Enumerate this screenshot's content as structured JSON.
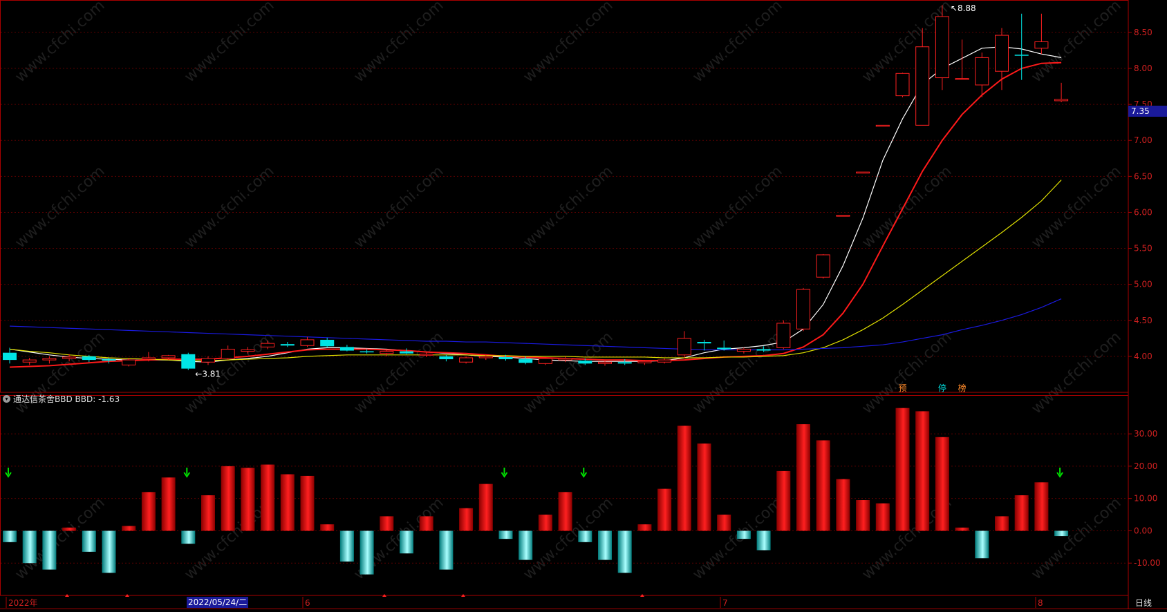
{
  "colors": {
    "up": "#ff2020",
    "down": "#00e5e5",
    "frame": "#aa0000",
    "grid": "#5a0000",
    "axis_text": "#d02020",
    "ma_white": "#ffffff",
    "ma_red": "#ff1a1a",
    "ma_yellow": "#e0e000",
    "ma_blue": "#1a1ae0",
    "signal_arrow": "#00e000",
    "marker_orange": "#ff8a2a",
    "marker_cyan": "#00e5e5"
  },
  "current_price_tag": "7.35",
  "price_axis": {
    "labels": [
      "8.50",
      "8.00",
      "7.50",
      "7.00",
      "6.50",
      "6.00",
      "5.50",
      "5.00",
      "4.50",
      "4.00"
    ]
  },
  "annotations": {
    "high_label": "8.88",
    "low_label": "3.81"
  },
  "event_markers": [
    "预",
    "停",
    "榜"
  ],
  "indicator": {
    "title": "通达信茶舍BBD  BBD: -1.63",
    "axis_labels": [
      "30.00",
      "20.00",
      "10.00",
      "0.00",
      "-10.00"
    ]
  },
  "time_axis": {
    "labels": [
      "2022年",
      "6",
      "7",
      "8"
    ],
    "cursor_date": "2022/05/24/二"
  },
  "period_label": "日线",
  "watermark_text": "www.cfchi.com",
  "chart_data": [
    {
      "type": "candlestick",
      "title": "",
      "ylim": [
        3.5,
        8.95
      ],
      "y_ticks": [
        4.0,
        4.5,
        5.0,
        5.5,
        6.0,
        6.5,
        7.0,
        7.5,
        8.0,
        8.5
      ],
      "candles": [
        {
          "o": 3.95,
          "h": 4.12,
          "l": 3.9,
          "c": 4.05,
          "color": "down"
        },
        {
          "o": 3.92,
          "h": 3.98,
          "l": 3.88,
          "c": 3.95,
          "color": "up"
        },
        {
          "o": 3.95,
          "h": 4.0,
          "l": 3.9,
          "c": 3.97,
          "color": "up"
        },
        {
          "o": 3.97,
          "h": 4.03,
          "l": 3.93,
          "c": 3.99,
          "color": "up"
        },
        {
          "o": 4.0,
          "h": 4.02,
          "l": 3.92,
          "c": 3.95,
          "color": "down"
        },
        {
          "o": 3.94,
          "h": 3.98,
          "l": 3.9,
          "c": 3.96,
          "color": "down"
        },
        {
          "o": 3.88,
          "h": 3.98,
          "l": 3.86,
          "c": 3.95,
          "color": "up"
        },
        {
          "o": 3.96,
          "h": 4.06,
          "l": 3.93,
          "c": 3.98,
          "color": "up"
        },
        {
          "o": 3.98,
          "h": 4.02,
          "l": 3.95,
          "c": 4.01,
          "color": "up"
        },
        {
          "o": 4.03,
          "h": 4.05,
          "l": 3.81,
          "c": 3.83,
          "color": "down"
        },
        {
          "o": 3.92,
          "h": 4.0,
          "l": 3.88,
          "c": 3.97,
          "color": "up"
        },
        {
          "o": 3.97,
          "h": 4.15,
          "l": 3.95,
          "c": 4.1,
          "color": "up"
        },
        {
          "o": 4.09,
          "h": 4.13,
          "l": 4.04,
          "c": 4.07,
          "color": "up"
        },
        {
          "o": 4.13,
          "h": 4.22,
          "l": 4.1,
          "c": 4.18,
          "color": "up"
        },
        {
          "o": 4.17,
          "h": 4.2,
          "l": 4.13,
          "c": 4.15,
          "color": "down"
        },
        {
          "o": 4.15,
          "h": 4.27,
          "l": 4.13,
          "c": 4.23,
          "color": "up"
        },
        {
          "o": 4.23,
          "h": 4.26,
          "l": 4.12,
          "c": 4.14,
          "color": "down"
        },
        {
          "o": 4.13,
          "h": 4.16,
          "l": 4.07,
          "c": 4.08,
          "color": "down"
        },
        {
          "o": 4.07,
          "h": 4.1,
          "l": 4.04,
          "c": 4.06,
          "color": "down"
        },
        {
          "o": 4.04,
          "h": 4.1,
          "l": 4.0,
          "c": 4.07,
          "color": "up"
        },
        {
          "o": 4.07,
          "h": 4.11,
          "l": 4.03,
          "c": 4.04,
          "color": "down"
        },
        {
          "o": 4.02,
          "h": 4.06,
          "l": 3.99,
          "c": 4.03,
          "color": "up"
        },
        {
          "o": 4.0,
          "h": 4.02,
          "l": 3.93,
          "c": 3.96,
          "color": "down"
        },
        {
          "o": 3.92,
          "h": 4.0,
          "l": 3.9,
          "c": 3.98,
          "color": "up"
        },
        {
          "o": 3.98,
          "h": 4.02,
          "l": 3.95,
          "c": 4.0,
          "color": "up"
        },
        {
          "o": 3.99,
          "h": 4.02,
          "l": 3.94,
          "c": 3.96,
          "color": "down"
        },
        {
          "o": 3.96,
          "h": 4.0,
          "l": 3.89,
          "c": 3.91,
          "color": "down"
        },
        {
          "o": 3.9,
          "h": 3.99,
          "l": 3.88,
          "c": 3.97,
          "color": "up"
        },
        {
          "o": 3.97,
          "h": 4.0,
          "l": 3.92,
          "c": 3.95,
          "color": "up"
        },
        {
          "o": 3.94,
          "h": 3.97,
          "l": 3.88,
          "c": 3.9,
          "color": "down"
        },
        {
          "o": 3.9,
          "h": 3.95,
          "l": 3.87,
          "c": 3.92,
          "color": "up"
        },
        {
          "o": 3.92,
          "h": 3.96,
          "l": 3.88,
          "c": 3.9,
          "color": "down"
        },
        {
          "o": 3.91,
          "h": 3.95,
          "l": 3.88,
          "c": 3.93,
          "color": "up"
        },
        {
          "o": 3.92,
          "h": 3.97,
          "l": 3.9,
          "c": 3.95,
          "color": "up"
        },
        {
          "o": 4.02,
          "h": 4.35,
          "l": 3.97,
          "c": 4.25,
          "color": "up"
        },
        {
          "o": 4.18,
          "h": 4.23,
          "l": 4.08,
          "c": 4.2,
          "color": "down"
        },
        {
          "o": 4.12,
          "h": 4.22,
          "l": 4.08,
          "c": 4.1,
          "color": "down"
        },
        {
          "o": 4.07,
          "h": 4.12,
          "l": 4.04,
          "c": 4.1,
          "color": "up"
        },
        {
          "o": 4.1,
          "h": 4.14,
          "l": 4.06,
          "c": 4.08,
          "color": "down"
        },
        {
          "o": 4.12,
          "h": 4.5,
          "l": 4.1,
          "c": 4.46,
          "color": "up"
        },
        {
          "o": 4.38,
          "h": 4.95,
          "l": 4.35,
          "c": 4.93,
          "color": "up"
        },
        {
          "o": 5.1,
          "h": 5.42,
          "l": 5.08,
          "c": 5.41,
          "color": "up"
        },
        {
          "o": 5.96,
          "h": 5.96,
          "l": 5.96,
          "c": 5.96,
          "color": "up"
        },
        {
          "o": 6.56,
          "h": 6.56,
          "l": 6.56,
          "c": 6.56,
          "color": "up"
        },
        {
          "o": 7.21,
          "h": 7.21,
          "l": 7.21,
          "c": 7.21,
          "color": "up"
        },
        {
          "o": 7.62,
          "h": 7.94,
          "l": 7.6,
          "c": 7.93,
          "color": "up"
        },
        {
          "o": 7.21,
          "h": 8.56,
          "l": 7.21,
          "c": 8.3,
          "color": "up"
        },
        {
          "o": 7.87,
          "h": 8.88,
          "l": 7.7,
          "c": 8.72,
          "color": "up"
        },
        {
          "o": 7.86,
          "h": 8.4,
          "l": 7.86,
          "c": 7.86,
          "color": "up"
        },
        {
          "o": 7.77,
          "h": 8.22,
          "l": 7.6,
          "c": 8.15,
          "color": "up"
        },
        {
          "o": 7.96,
          "h": 8.56,
          "l": 7.7,
          "c": 8.46,
          "color": "up"
        },
        {
          "o": 8.19,
          "h": 8.76,
          "l": 7.84,
          "c": 8.19,
          "color": "down"
        },
        {
          "o": 8.28,
          "h": 8.76,
          "l": 8.2,
          "c": 8.37,
          "color": "up"
        },
        {
          "o": 7.55,
          "h": 7.8,
          "l": 7.53,
          "c": 7.57,
          "color": "up"
        }
      ],
      "moving_averages": [
        {
          "color": "ma_white",
          "values": [
            4.1,
            4.06,
            4.02,
            3.99,
            3.97,
            3.96,
            3.95,
            3.95,
            3.95,
            3.93,
            3.92,
            3.95,
            3.97,
            4.0,
            4.05,
            4.1,
            4.12,
            4.12,
            4.11,
            4.1,
            4.08,
            4.06,
            4.04,
            4.02,
            4.0,
            3.99,
            3.97,
            3.95,
            3.94,
            3.93,
            3.93,
            3.93,
            3.93,
            3.94,
            3.98,
            4.05,
            4.1,
            4.12,
            4.15,
            4.2,
            4.38,
            4.72,
            5.26,
            5.92,
            6.72,
            7.3,
            7.78,
            8.0,
            8.14,
            8.28,
            8.3,
            8.27,
            8.2,
            8.15
          ]
        },
        {
          "color": "ma_red",
          "values": [
            3.85,
            3.86,
            3.87,
            3.89,
            3.91,
            3.93,
            3.94,
            3.95,
            3.96,
            3.96,
            3.96,
            3.98,
            4.0,
            4.03,
            4.06,
            4.09,
            4.1,
            4.1,
            4.1,
            4.09,
            4.08,
            4.06,
            4.05,
            4.04,
            4.02,
            4.0,
            3.99,
            3.98,
            3.97,
            3.96,
            3.95,
            3.95,
            3.94,
            3.94,
            3.95,
            3.97,
            3.99,
            4.0,
            4.01,
            4.04,
            4.13,
            4.3,
            4.6,
            5.0,
            5.53,
            6.05,
            6.57,
            7.0,
            7.36,
            7.63,
            7.85,
            8.0,
            8.07,
            8.08
          ]
        },
        {
          "color": "ma_yellow",
          "values": [
            4.1,
            4.07,
            4.05,
            4.02,
            4.0,
            3.98,
            3.97,
            3.96,
            3.95,
            3.94,
            3.94,
            3.95,
            3.96,
            3.97,
            3.98,
            4.0,
            4.01,
            4.02,
            4.02,
            4.02,
            4.02,
            4.02,
            4.02,
            4.02,
            4.01,
            4.01,
            4.0,
            4.0,
            4.0,
            3.99,
            3.99,
            3.99,
            3.99,
            3.98,
            3.98,
            3.98,
            3.99,
            3.99,
            4.0,
            4.01,
            4.05,
            4.12,
            4.23,
            4.37,
            4.53,
            4.72,
            4.92,
            5.12,
            5.32,
            5.52,
            5.72,
            5.93,
            6.16,
            6.45
          ]
        },
        {
          "color": "ma_blue",
          "values": [
            4.42,
            4.41,
            4.4,
            4.39,
            4.38,
            4.37,
            4.36,
            4.35,
            4.34,
            4.33,
            4.32,
            4.31,
            4.3,
            4.29,
            4.28,
            4.27,
            4.26,
            4.25,
            4.24,
            4.23,
            4.22,
            4.21,
            4.21,
            4.2,
            4.2,
            4.19,
            4.18,
            4.17,
            4.16,
            4.15,
            4.14,
            4.13,
            4.12,
            4.11,
            4.1,
            4.09,
            4.09,
            4.09,
            4.09,
            4.09,
            4.1,
            4.11,
            4.12,
            4.14,
            4.16,
            4.2,
            4.25,
            4.3,
            4.37,
            4.43,
            4.5,
            4.58,
            4.68,
            4.8
          ]
        }
      ]
    },
    {
      "type": "bar",
      "title": "通达信茶舍BBD  BBD: -1.63",
      "series_name": "BBD",
      "ylim": [
        -20,
        42
      ],
      "y_ticks": [
        30,
        20,
        10,
        0,
        -10
      ],
      "values": [
        -3.5,
        -10,
        -12,
        1,
        -6.5,
        -13,
        1.5,
        12,
        16.5,
        -4,
        11,
        20,
        19.5,
        20.5,
        17.5,
        17,
        2,
        -9.5,
        -13.5,
        4.5,
        -7,
        4.5,
        -12,
        7,
        14.5,
        -2.5,
        -9,
        5,
        12,
        -3.5,
        -9,
        -13,
        2,
        13,
        32.5,
        27,
        5,
        -2.5,
        -6,
        18.5,
        33,
        28,
        16,
        9.5,
        8.5,
        38,
        37,
        29,
        1,
        -8.5,
        4.5,
        11,
        15,
        -1.63
      ],
      "signal_arrows_at": [
        0,
        9,
        25,
        29,
        53
      ]
    }
  ]
}
